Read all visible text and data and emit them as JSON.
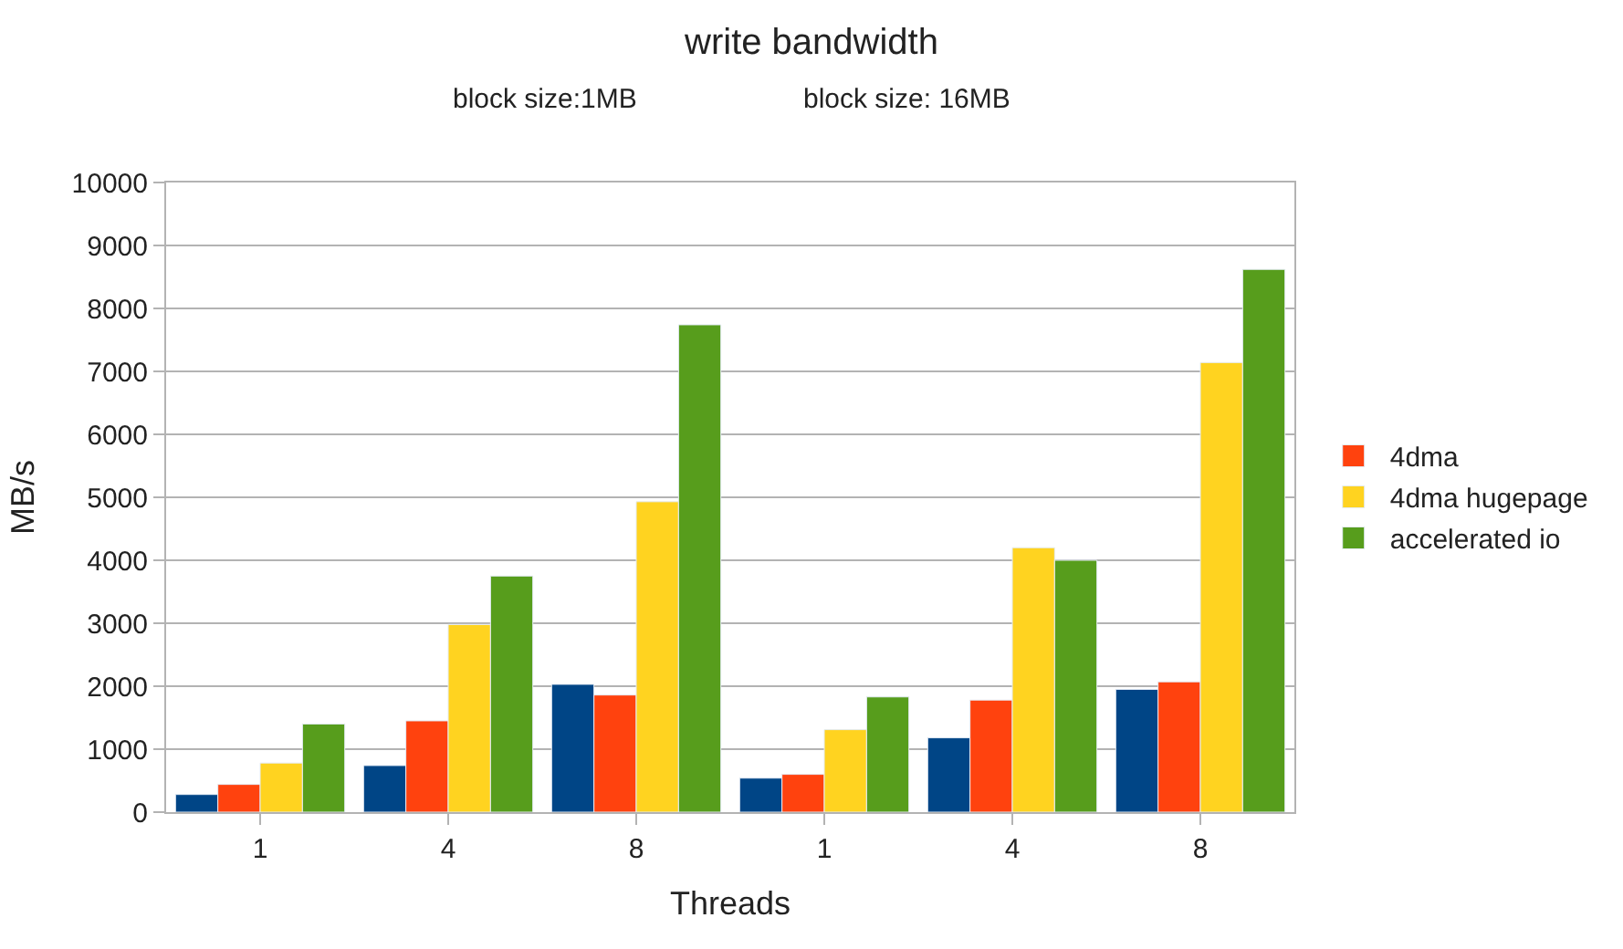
{
  "chart_data": {
    "type": "bar",
    "title": "write bandwidth",
    "xlabel": "Threads",
    "ylabel": "MB/s",
    "annotations": [
      "block size:1MB",
      "block size: 16MB"
    ],
    "categories": [
      "1",
      "4",
      "8",
      "1",
      "4",
      "8"
    ],
    "series": [
      {
        "color": "#004586",
        "values": [
          280,
          740,
          2030,
          540,
          1180,
          1950
        ]
      },
      {
        "name": "4dma",
        "color": "#ff420e",
        "values": [
          440,
          1450,
          1860,
          600,
          1780,
          2070
        ]
      },
      {
        "name": "4dma hugepage",
        "color": "#ffd320",
        "values": [
          780,
          2980,
          4930,
          1310,
          4200,
          7140
        ]
      },
      {
        "name": "accelerated io",
        "color": "#579d1c",
        "values": [
          1400,
          3750,
          7740,
          1830,
          4000,
          8620
        ]
      }
    ],
    "ylim": [
      0,
      10000
    ],
    "yticks": [
      0,
      1000,
      2000,
      3000,
      4000,
      5000,
      6000,
      7000,
      8000,
      9000,
      10000
    ],
    "grid": "y",
    "legend": "right"
  }
}
